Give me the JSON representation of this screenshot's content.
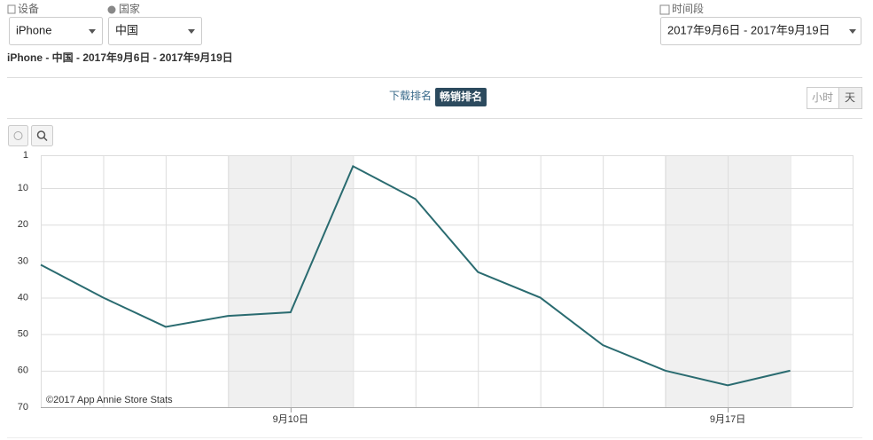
{
  "filters": {
    "device": {
      "label": "设备",
      "value": "iPhone"
    },
    "country": {
      "label": "国家",
      "value": "中国"
    },
    "period": {
      "label": "时间段",
      "value": "2017年9月6日 - 2017年9月19日"
    }
  },
  "subtitle": "iPhone - 中国 - 2017年9月6日 - 2017年9月19日",
  "tabs": [
    "下载排名",
    "畅销排名"
  ],
  "granularity": [
    "小时",
    "天"
  ],
  "credit": "©2017 App Annie Store Stats",
  "chart_data": {
    "type": "line",
    "categories": [
      null,
      null,
      null,
      null,
      "9月10日",
      null,
      null,
      null,
      null,
      null,
      null,
      "9月17日",
      null
    ],
    "values": [
      31,
      40,
      48,
      45,
      44,
      4,
      13,
      33,
      40,
      53,
      60,
      64,
      60
    ],
    "color": "#2a6b70",
    "ylim": [
      1,
      70
    ],
    "y_reversed": true,
    "yticks": [
      1,
      10,
      20,
      30,
      40,
      50,
      60,
      70
    ],
    "grid": true
  }
}
